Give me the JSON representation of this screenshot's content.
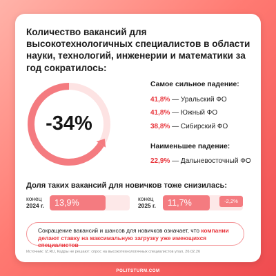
{
  "title": "Количество вакансий для высокотехнологичных специалистов в области науки, технологий, инженерии и математики за год сократилось:",
  "main_stat": {
    "value": "-34%",
    "fraction": 0.66
  },
  "strongest": {
    "heading": "Самое сильное падение:",
    "items": [
      {
        "pct": "41,8%",
        "label": "— Уральский ФО"
      },
      {
        "pct": "41,8%",
        "label": "— Южный ФО"
      },
      {
        "pct": "38,8%",
        "label": "— Сибирский ФО"
      }
    ]
  },
  "weakest": {
    "heading": "Наименьшее падение:",
    "items": [
      {
        "pct": "22,9%",
        "label": "— Дальневосточный ФО"
      }
    ]
  },
  "newcomers": {
    "heading": "Доля таких вакансий для новичков тоже снизилась:",
    "bars": [
      {
        "label_top": "конец",
        "label_year": "2024 г.",
        "value": "13,9%",
        "share": 13.9
      },
      {
        "label_top": "конец",
        "label_year": "2025 г.",
        "value": "11,7%",
        "share": 11.7
      }
    ],
    "delta": "-2,2%"
  },
  "note": {
    "part1": "Сокращение вакансий и шансов для новичков означает, что ",
    "highlight": "компании делают ставку на максимальную загрузку уже имеющихся специалистов"
  },
  "source": "Источник: IZ.RU, Кадры не решают: спрос на высокотехнологичных специалистов упал, 26.02.26",
  "brand": "POLITSTURM.COM",
  "colors": {
    "accent": "#e8343b",
    "bar": "#f47b80",
    "track": "#fde8e8"
  }
}
